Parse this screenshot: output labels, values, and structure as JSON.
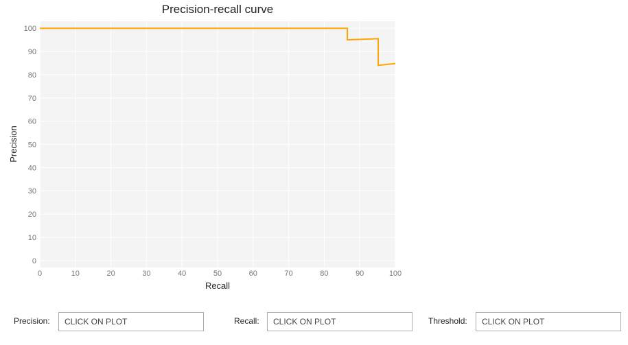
{
  "chart_data": {
    "type": "line",
    "title": "Precision-recall curve",
    "xlabel": "Recall",
    "ylabel": "Precision",
    "xlim": [
      0,
      100
    ],
    "ylim": [
      -3,
      103
    ],
    "x_ticks": [
      0,
      10,
      20,
      30,
      40,
      50,
      60,
      70,
      80,
      90,
      100
    ],
    "y_ticks": [
      0,
      10,
      20,
      30,
      40,
      50,
      60,
      70,
      80,
      90,
      100
    ],
    "grid": true,
    "series": [
      {
        "color": "#FFA500",
        "x": [
          0,
          86.5,
          86.5,
          95.2,
          95.2,
          100
        ],
        "y": [
          100,
          100,
          95,
          95.5,
          84,
          84.8
        ]
      }
    ]
  },
  "controls": {
    "precision_label": "Precision:",
    "precision_placeholder": "CLICK ON PLOT",
    "recall_label": "Recall:",
    "recall_placeholder": "CLICK ON PLOT",
    "threshold_label": "Threshold:",
    "threshold_placeholder": "CLICK ON PLOT"
  }
}
